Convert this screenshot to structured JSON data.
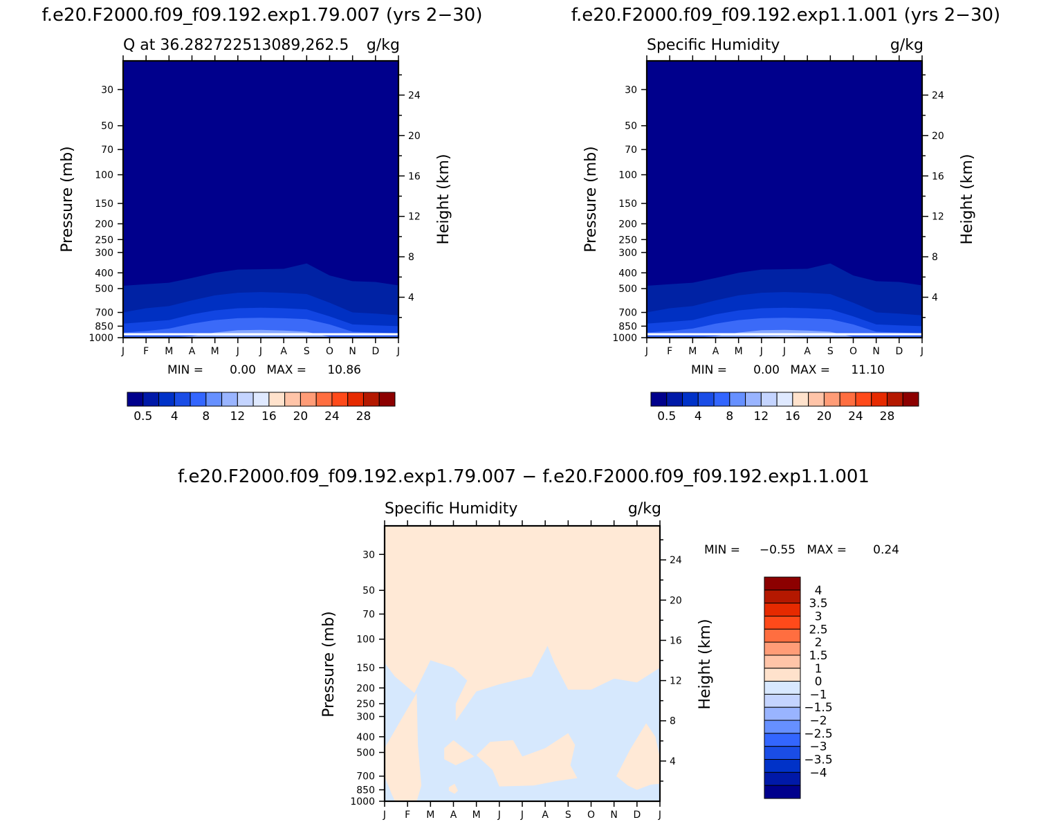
{
  "chart_data": [
    {
      "type": "heatmap",
      "case_title": "f.e20.F2000.f09_f09.192.exp1.79.007 (yrs 2−30)",
      "title": "Q at 36.282722513089,262.5",
      "units": "g/kg",
      "ylabel": "Pressure (mb)",
      "ylabel_right": "Height (km)",
      "xticks": [
        "J",
        "F",
        "M",
        "A",
        "M",
        "J",
        "J",
        "A",
        "S",
        "O",
        "N",
        "D",
        "J"
      ],
      "yticks": [
        "30",
        "50",
        "70",
        "100",
        "150",
        "200",
        "250",
        "300",
        "400",
        "500",
        "700",
        "850",
        "1000"
      ],
      "yticks_right": [
        "24",
        "20",
        "16",
        "12",
        "8",
        "4"
      ],
      "stats": {
        "min_label": "MIN =",
        "min": "0.00",
        "max_label": "MAX =",
        "max": "10.86"
      },
      "ylim_mb": [
        1000,
        20
      ],
      "colorbar_labels": [
        "0.5",
        "4",
        "8",
        "12",
        "16",
        "20",
        "24",
        "28"
      ],
      "colors": [
        "#00008c",
        "#0019a8",
        "#0032c8",
        "#1a4de6",
        "#3366ff",
        "#6690ff",
        "#99b4ff",
        "#c4d4ff",
        "#dfe9ff",
        "#ffe2cc",
        "#ffc4a8",
        "#ff9c77",
        "#ff6e40",
        "#ff4a1a",
        "#e62a00",
        "#b41800",
        "#8c0000"
      ],
      "contour_levels": [
        0.5,
        2,
        4,
        6,
        8
      ],
      "contour_colors": [
        "#0022a4",
        "#0030c2",
        "#1145e2",
        "#3b6af8",
        "#84a6ff"
      ],
      "months": [
        0,
        1,
        2,
        3,
        4,
        5,
        6,
        7,
        8,
        9,
        10,
        11,
        12
      ],
      "contour_top_mb": [
        [
          480,
          470,
          460,
          430,
          400,
          382,
          380,
          378,
          350,
          415,
          450,
          455,
          478
        ],
        [
          700,
          660,
          640,
          590,
          550,
          530,
          525,
          530,
          540,
          610,
          700,
          712,
          730
        ],
        [
          820,
          800,
          780,
          720,
          680,
          660,
          655,
          660,
          670,
          740,
          830,
          840,
          850
        ],
        [
          930,
          910,
          880,
          820,
          780,
          760,
          755,
          760,
          770,
          830,
          920,
          930,
          940
        ],
        [
          1002,
          1002,
          1002,
          980,
          930,
          900,
          895,
          905,
          920,
          990,
          1002,
          1002,
          1002
        ]
      ]
    },
    {
      "type": "heatmap",
      "case_title": "f.e20.F2000.f09_f09.192.exp1.1.001 (yrs 2−30)",
      "title": "Specific Humidity",
      "units": "g/kg",
      "ylabel": "Pressure (mb)",
      "ylabel_right": "Height (km)",
      "xticks": [
        "J",
        "F",
        "M",
        "A",
        "M",
        "J",
        "J",
        "A",
        "S",
        "O",
        "N",
        "D",
        "J"
      ],
      "yticks": [
        "30",
        "50",
        "70",
        "100",
        "150",
        "200",
        "250",
        "300",
        "400",
        "500",
        "700",
        "850",
        "1000"
      ],
      "yticks_right": [
        "24",
        "20",
        "16",
        "12",
        "8",
        "4"
      ],
      "stats": {
        "min_label": "MIN =",
        "min": "0.00",
        "max_label": "MAX =",
        "max": "11.10"
      },
      "ylim_mb": [
        1000,
        20
      ],
      "colorbar_labels": [
        "0.5",
        "4",
        "8",
        "12",
        "16",
        "20",
        "24",
        "28"
      ],
      "colors": [
        "#00008c",
        "#0019a8",
        "#0032c8",
        "#1a4de6",
        "#3366ff",
        "#6690ff",
        "#99b4ff",
        "#c4d4ff",
        "#dfe9ff",
        "#ffe2cc",
        "#ffc4a8",
        "#ff9c77",
        "#ff6e40",
        "#ff4a1a",
        "#e62a00",
        "#b41800",
        "#8c0000"
      ],
      "contour_levels": [
        0.5,
        2,
        4,
        6,
        8,
        10
      ],
      "contour_colors": [
        "#0022a4",
        "#0030c2",
        "#1145e2",
        "#3b6af8",
        "#84a6ff",
        "#c4d6ff"
      ],
      "months": [
        0,
        1,
        2,
        3,
        4,
        5,
        6,
        7,
        8,
        9,
        10,
        11,
        12
      ],
      "contour_top_mb": [
        [
          480,
          470,
          460,
          430,
          400,
          382,
          380,
          378,
          350,
          415,
          450,
          455,
          478
        ],
        [
          700,
          660,
          640,
          590,
          550,
          530,
          525,
          530,
          540,
          610,
          700,
          712,
          730
        ],
        [
          820,
          800,
          780,
          720,
          680,
          660,
          655,
          660,
          670,
          740,
          830,
          840,
          850
        ],
        [
          930,
          910,
          880,
          820,
          780,
          760,
          755,
          760,
          770,
          830,
          920,
          930,
          940
        ],
        [
          1002,
          1002,
          1002,
          980,
          930,
          900,
          895,
          905,
          920,
          990,
          1002,
          1002,
          1002
        ],
        [
          1002,
          1002,
          1002,
          1002,
          1000,
          985,
          980,
          990,
          1002,
          1002,
          1002,
          1002,
          1002
        ]
      ]
    },
    {
      "type": "heatmap",
      "case_title": "f.e20.F2000.f09_f09.192.exp1.79.007 − f.e20.F2000.f09_f09.192.exp1.1.001",
      "title": "Specific Humidity",
      "units": "g/kg",
      "ylabel": "Pressure (mb)",
      "ylabel_right": "Height (km)",
      "xticks": [
        "J",
        "F",
        "M",
        "A",
        "M",
        "J",
        "J",
        "A",
        "S",
        "O",
        "N",
        "D",
        "J"
      ],
      "yticks": [
        "30",
        "50",
        "70",
        "100",
        "150",
        "200",
        "250",
        "300",
        "400",
        "500",
        "700",
        "850",
        "1000"
      ],
      "yticks_right": [
        "24",
        "20",
        "16",
        "12",
        "8",
        "4"
      ],
      "stats": {
        "min_label": "MIN =",
        "min": "−0.55",
        "max_label": "MAX =",
        "max": "0.24"
      },
      "ylim_mb": [
        1000,
        20
      ],
      "colorbar_labels": [
        "4",
        "3.5",
        "3",
        "2.5",
        "2",
        "1.5",
        "1",
        "0",
        "−1",
        "−1.5",
        "−2",
        "−2.5",
        "−3",
        "−3.5",
        "−4"
      ],
      "colors": [
        "#8c0000",
        "#b41800",
        "#e62a00",
        "#ff4a1a",
        "#ff6e40",
        "#ff9c77",
        "#ffc4a8",
        "#ffe2cc",
        "#d8e8ff",
        "#c4d4ff",
        "#99b4ff",
        "#6690ff",
        "#3366ff",
        "#1a4de6",
        "#0032c8",
        "#0019a8",
        "#00008c"
      ],
      "background_value_color": "#ffe9d6",
      "negative_fill_color": "#d6e8fd"
    }
  ]
}
